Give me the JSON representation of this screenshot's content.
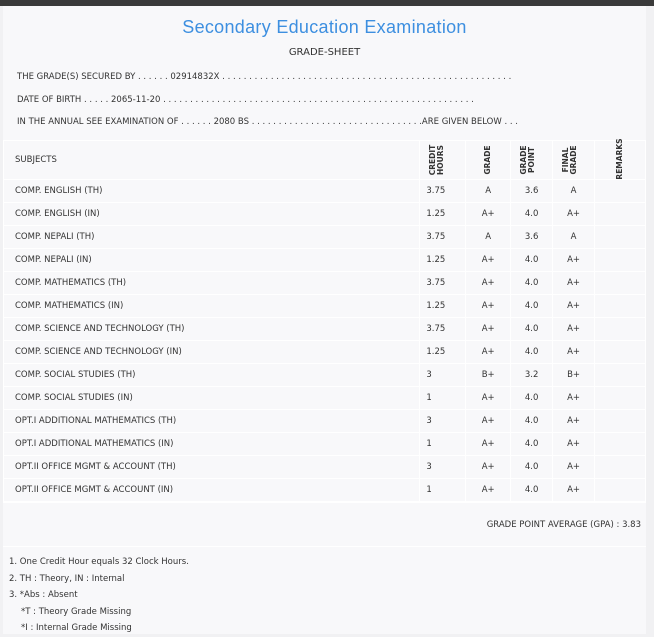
{
  "header": {
    "title": "Secondary Education Examination",
    "subtitle": "GRADE-SHEET"
  },
  "info": {
    "secured_by": "THE GRADE(S) SECURED BY . . . . . . 02914832X . . . . . . . . . . . . . . . . . . . . . . . . . . . . . . . . . . . . . . . . . . . . . . . . . . . . . .",
    "dob": "DATE OF BIRTH . . . . . 2065-11-20 . . . . . . . . . . . . . . . . . . . . . . . . . . . . . . . . . . . . . . . . . . . . . . . . . . . . . . . . . .",
    "exam": "IN THE ANNUAL SEE EXAMINATION OF . . . . . . 2080 BS . . . . . . . . . . . . . . . . . . . . . . . . . . . . . . . .ARE GIVEN BELOW . . ."
  },
  "table": {
    "headers": {
      "subjects": "SUBJECTS",
      "credit": "CREDIT HOURS",
      "grade": "GRADE",
      "point": "GRADE POINT",
      "final": "FINAL GRADE",
      "remarks": "REMARKS"
    },
    "rows": [
      [
        "COMP. ENGLISH (TH)",
        "3.75",
        "A",
        "3.6",
        "A"
      ],
      [
        "COMP. ENGLISH (IN)",
        "1.25",
        "A+",
        "4.0",
        "A+"
      ],
      [
        "COMP. NEPALI (TH)",
        "3.75",
        "A",
        "3.6",
        "A"
      ],
      [
        "COMP. NEPALI (IN)",
        "1.25",
        "A+",
        "4.0",
        "A+"
      ],
      [
        "COMP. MATHEMATICS (TH)",
        "3.75",
        "A+",
        "4.0",
        "A+"
      ],
      [
        "COMP. MATHEMATICS (IN)",
        "1.25",
        "A+",
        "4.0",
        "A+"
      ],
      [
        "COMP. SCIENCE AND TECHNOLOGY (TH)",
        "3.75",
        "A+",
        "4.0",
        "A+"
      ],
      [
        "COMP. SCIENCE AND TECHNOLOGY (IN)",
        "1.25",
        "A+",
        "4.0",
        "A+"
      ],
      [
        "COMP. SOCIAL STUDIES (TH)",
        "3",
        "B+",
        "3.2",
        "B+"
      ],
      [
        "COMP. SOCIAL STUDIES (IN)",
        "1",
        "A+",
        "4.0",
        "A+"
      ],
      [
        "OPT.I ADDITIONAL MATHEMATICS (TH)",
        "3",
        "A+",
        "4.0",
        "A+"
      ],
      [
        "OPT.I ADDITIONAL MATHEMATICS (IN)",
        "1",
        "A+",
        "4.0",
        "A+"
      ],
      [
        "OPT.II OFFICE MGMT & ACCOUNT (TH)",
        "3",
        "A+",
        "4.0",
        "A+"
      ],
      [
        "OPT.II OFFICE MGMT & ACCOUNT (IN)",
        "1",
        "A+",
        "4.0",
        "A+"
      ]
    ]
  },
  "gpa": "GRADE POINT AVERAGE (GPA) : 3.83",
  "notes": [
    "1. One Credit Hour equals 32 Clock Hours.",
    "2. TH : Theory, IN : Internal",
    "3. *Abs : Absent",
    "   *T : Theory Grade Missing",
    "   *I : Internal Grade Missing"
  ],
  "colors": {
    "title": "#3d8fe0",
    "topbar": "#3a3a3a"
  }
}
